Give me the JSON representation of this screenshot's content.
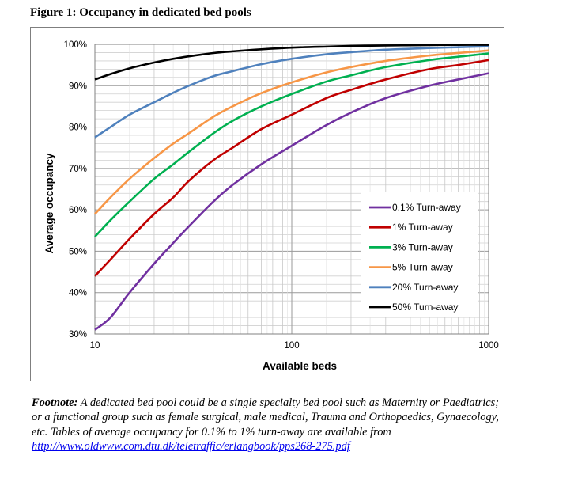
{
  "figure_title": "Figure 1: Occupancy in dedicated bed pools",
  "chart_data": {
    "type": "line",
    "title": "Figure 1: Occupancy in dedicated bed pools",
    "xlabel": "Available beds",
    "ylabel": "Average occupancy",
    "x_scale": "log",
    "xlim": [
      10,
      1000
    ],
    "ylim": [
      30,
      100
    ],
    "x_tick_labels": [
      "10",
      "100",
      "1000"
    ],
    "y_tick_labels": [
      "30%",
      "40%",
      "50%",
      "60%",
      "70%",
      "80%",
      "90%",
      "100%"
    ],
    "y_ticks": [
      30,
      40,
      50,
      60,
      70,
      80,
      90,
      100
    ],
    "grid": true,
    "legend_position": "right",
    "series": [
      {
        "name": "0.1% Turn-away",
        "color": "#7030a0",
        "x": [
          10,
          12,
          15,
          20,
          25,
          30,
          40,
          50,
          70,
          100,
          150,
          200,
          300,
          500,
          700,
          1000
        ],
        "y": [
          31,
          34,
          40,
          47,
          52,
          56,
          62,
          66,
          71,
          75.5,
          80.5,
          83.5,
          87,
          90,
          91.5,
          93
        ]
      },
      {
        "name": "1% Turn-away",
        "color": "#c00000",
        "x": [
          10,
          12,
          15,
          20,
          25,
          30,
          40,
          50,
          70,
          100,
          150,
          200,
          300,
          500,
          700,
          1000
        ],
        "y": [
          44,
          48,
          53,
          59,
          63,
          67,
          72,
          75,
          79.5,
          83,
          87,
          89,
          91.5,
          94,
          95,
          96.2
        ]
      },
      {
        "name": "3% Turn-away",
        "color": "#00b050",
        "x": [
          10,
          12,
          15,
          20,
          25,
          30,
          40,
          50,
          70,
          100,
          150,
          200,
          300,
          500,
          700,
          1000
        ],
        "y": [
          53.5,
          57.5,
          62,
          67.5,
          71,
          74,
          78.5,
          81.5,
          85,
          88,
          91,
          92.5,
          94.5,
          96.2,
          97,
          97.8
        ]
      },
      {
        "name": "5% Turn-away",
        "color": "#f79646",
        "x": [
          10,
          12,
          15,
          20,
          25,
          30,
          40,
          50,
          70,
          100,
          150,
          200,
          300,
          500,
          700,
          1000
        ],
        "y": [
          59,
          63,
          67.5,
          72.5,
          76,
          78.5,
          82.5,
          85,
          88.2,
          90.8,
          93.2,
          94.5,
          96,
          97.3,
          97.9,
          98.5
        ]
      },
      {
        "name": "20% Turn-away",
        "color": "#4f81bd",
        "x": [
          10,
          12,
          15,
          20,
          25,
          30,
          40,
          50,
          70,
          100,
          150,
          200,
          300,
          500,
          700,
          1000
        ],
        "y": [
          77.5,
          80,
          83,
          86,
          88.3,
          90,
          92.3,
          93.5,
          95.2,
          96.5,
          97.6,
          98.1,
          98.7,
          99.1,
          99.3,
          99.5
        ]
      },
      {
        "name": "50% Turn-away",
        "color": "#000000",
        "x": [
          10,
          12,
          15,
          20,
          25,
          30,
          40,
          50,
          70,
          100,
          150,
          200,
          300,
          500,
          700,
          1000
        ],
        "y": [
          91.5,
          92.8,
          94.2,
          95.6,
          96.5,
          97.1,
          97.9,
          98.3,
          98.8,
          99.2,
          99.45,
          99.6,
          99.72,
          99.82,
          99.87,
          99.9
        ]
      }
    ]
  },
  "footnote": {
    "lead": "Footnote:",
    "text": " A dedicated bed pool could be a single specialty bed pool such as Maternity or Paediatrics; or a functional group such as female surgical, male medical, Trauma and Orthopaedics, Gynaecology, etc. Tables of average occupancy for 0.1% to 1% turn-away are available from ",
    "link": "http://www.oldwww.com.dtu.dk/teletraffic/erlangbook/pps268-275.pdf"
  }
}
